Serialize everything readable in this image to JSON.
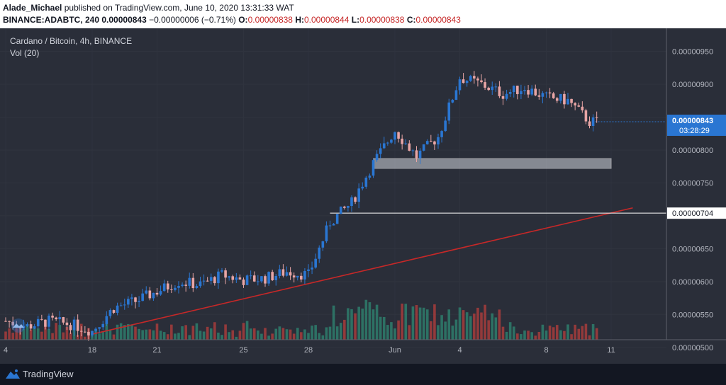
{
  "header": {
    "author": "Alade_Michael",
    "published_text": "published on TradingView.com, June 10, 2020 13:31:33 WAT",
    "symbol": "BINANCE:ADABTC, 240",
    "last": "0.00000843",
    "change": "−0.00000006 (−0.71%)",
    "o_label": "O:",
    "o_value": "0.00000838",
    "h_label": "H:",
    "h_value": "0.00000844",
    "l_label": "L:",
    "l_value": "0.00000838",
    "c_label": "C:",
    "c_value": "0.00000843"
  },
  "chart": {
    "title": "Cardano / Bitcoin, 4h, BINANCE",
    "volume_label": "Vol (20)"
  },
  "footer": {
    "brand": "TradingView"
  },
  "colors": {
    "background": "#2a2e39",
    "up": "#2a76d2",
    "down": "#e8a5a5",
    "vol_up": "#2e7d6c",
    "vol_down": "#a63c3c",
    "trendline": "#c62828"
  },
  "chart_data": {
    "type": "candlestick",
    "x_ticks": [
      "4",
      "18",
      "21",
      "25",
      "28",
      "Jun",
      "4",
      "8",
      "11"
    ],
    "y_ticks": [
      "0.00000500",
      "0.00000550",
      "0.00000600",
      "0.00000650",
      "0.00000700",
      "0.00000750",
      "0.00000800",
      "0.00000850",
      "0.00000900",
      "0.00000950"
    ],
    "ylim": [
      4.75e-06,
      9.85e-06
    ],
    "last_price_label": "0.00000843",
    "countdown_label": "03:28:29",
    "level_label": "0.00000704",
    "level_price": 7.04e-06,
    "support_zone": [
      7.72e-06,
      7.87e-06
    ],
    "trendline": {
      "start": [
        "May 18",
        5.2e-06
      ],
      "end": [
        "Jun 12",
        7.12e-06
      ]
    },
    "price_path": [
      [
        "May 14",
        5.4e-06
      ],
      [
        "May 15",
        5.32e-06
      ],
      [
        "May 16",
        5.4e-06
      ],
      [
        "May 17",
        5.35e-06
      ],
      [
        "May 18",
        5.25e-06
      ],
      [
        "May 19",
        5.6e-06
      ],
      [
        "May 20",
        5.7e-06
      ],
      [
        "May 21",
        5.85e-06
      ],
      [
        "May 22",
        6e-06
      ],
      [
        "May 23",
        5.95e-06
      ],
      [
        "May 24",
        6.1e-06
      ],
      [
        "May 25",
        6.02e-06
      ],
      [
        "May 26",
        6.05e-06
      ],
      [
        "May 27",
        6.15e-06
      ],
      [
        "May 28",
        6.1e-06
      ],
      [
        "May 29",
        6.9e-06
      ],
      [
        "May 30",
        7.2e-06
      ],
      [
        "May 31",
        7.8e-06
      ],
      [
        "Jun 1",
        8.3e-06
      ],
      [
        "Jun 2",
        7.9e-06
      ],
      [
        "Jun 3",
        8.2e-06
      ],
      [
        "Jun 4",
        9.1e-06
      ],
      [
        "Jun 5",
        9e-06
      ],
      [
        "Jun 6",
        8.85e-06
      ],
      [
        "Jun 7",
        8.95e-06
      ],
      [
        "Jun 8",
        8.8e-06
      ],
      [
        "Jun 9",
        8.75e-06
      ],
      [
        "Jun 10",
        8.43e-06
      ]
    ]
  }
}
